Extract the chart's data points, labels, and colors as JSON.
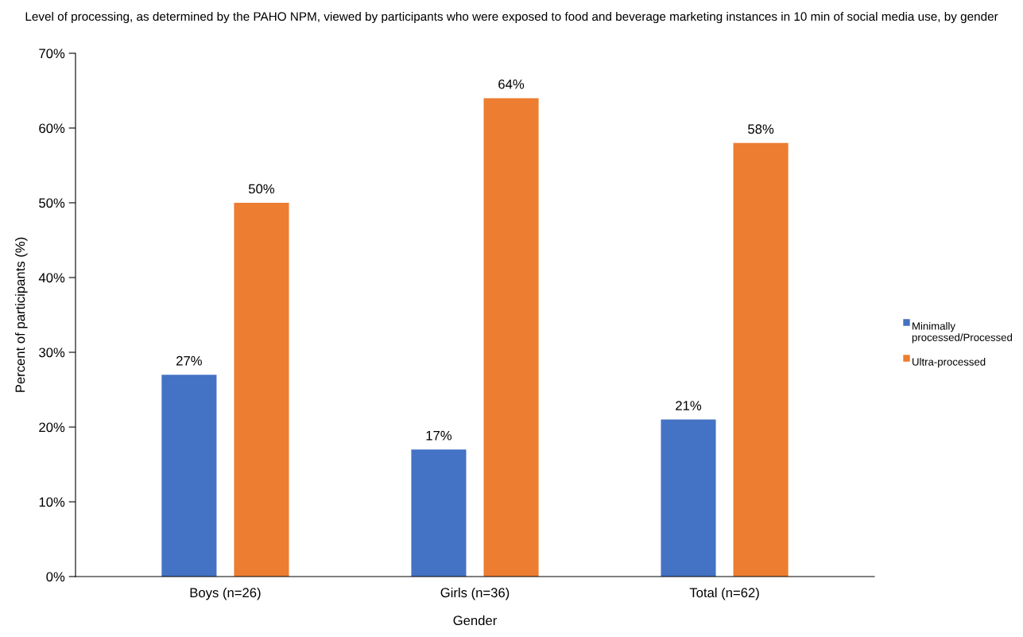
{
  "chart_data": {
    "type": "bar",
    "title": "Level of processing, as determined by the PAHO NPM, viewed by participants who were exposed to food and beverage marketing instances in 10 min of social media use, by gender",
    "xlabel": "Gender",
    "ylabel": "Percent of participants (%)",
    "categories": [
      "Boys (n=26)",
      "Girls (n=36)",
      "Total (n=62)"
    ],
    "series": [
      {
        "name": "Minimally processed/Processed",
        "color": "#4472c4",
        "values": [
          27,
          17,
          21
        ],
        "value_labels": [
          "27%",
          "17%",
          "21%"
        ]
      },
      {
        "name": "Ultra-processed",
        "color": "#ed7d31",
        "values": [
          50,
          64,
          58
        ],
        "value_labels": [
          "50%",
          "64%",
          "58%"
        ]
      }
    ],
    "ylim": [
      0,
      70
    ],
    "yticks": [
      {
        "value": 0,
        "label": "0%"
      },
      {
        "value": 10,
        "label": "10%"
      },
      {
        "value": 20,
        "label": "20%"
      },
      {
        "value": 30,
        "label": "30%"
      },
      {
        "value": 40,
        "label": "40%"
      },
      {
        "value": 50,
        "label": "50%"
      },
      {
        "value": 60,
        "label": "60%"
      },
      {
        "value": 70,
        "label": "70%"
      }
    ],
    "grid": false,
    "legend": "right"
  }
}
